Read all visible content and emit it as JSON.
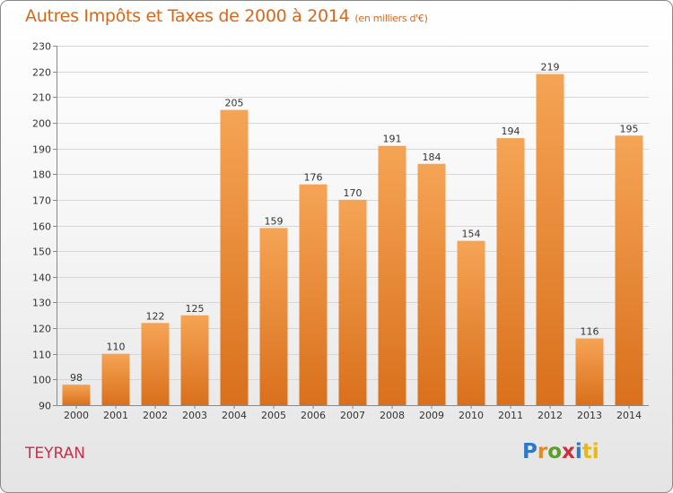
{
  "header": {
    "title": "Autres Impôts et Taxes de 2000 à 2014",
    "subtitle": "(en milliers d'€)"
  },
  "commune": "TEYRAN",
  "brand": {
    "letters": [
      "P",
      "r",
      "o",
      "x",
      "i",
      "ti"
    ]
  },
  "colors": {
    "bar_top": "#f5a455",
    "bar_bottom": "#d9701c",
    "title": "#d8671a",
    "commune": "#c6304a"
  },
  "chart_data": {
    "type": "bar",
    "categories": [
      "2000",
      "2001",
      "2002",
      "2003",
      "2004",
      "2005",
      "2006",
      "2007",
      "2008",
      "2009",
      "2010",
      "2011",
      "2012",
      "2013",
      "2014"
    ],
    "values": [
      98,
      110,
      122,
      125,
      205,
      159,
      176,
      170,
      191,
      184,
      154,
      194,
      219,
      116,
      195
    ],
    "ylim": [
      90,
      230
    ],
    "yticks": [
      90,
      100,
      110,
      120,
      130,
      140,
      150,
      160,
      170,
      180,
      190,
      200,
      210,
      220,
      230
    ],
    "grid": true,
    "data_labels": true
  }
}
